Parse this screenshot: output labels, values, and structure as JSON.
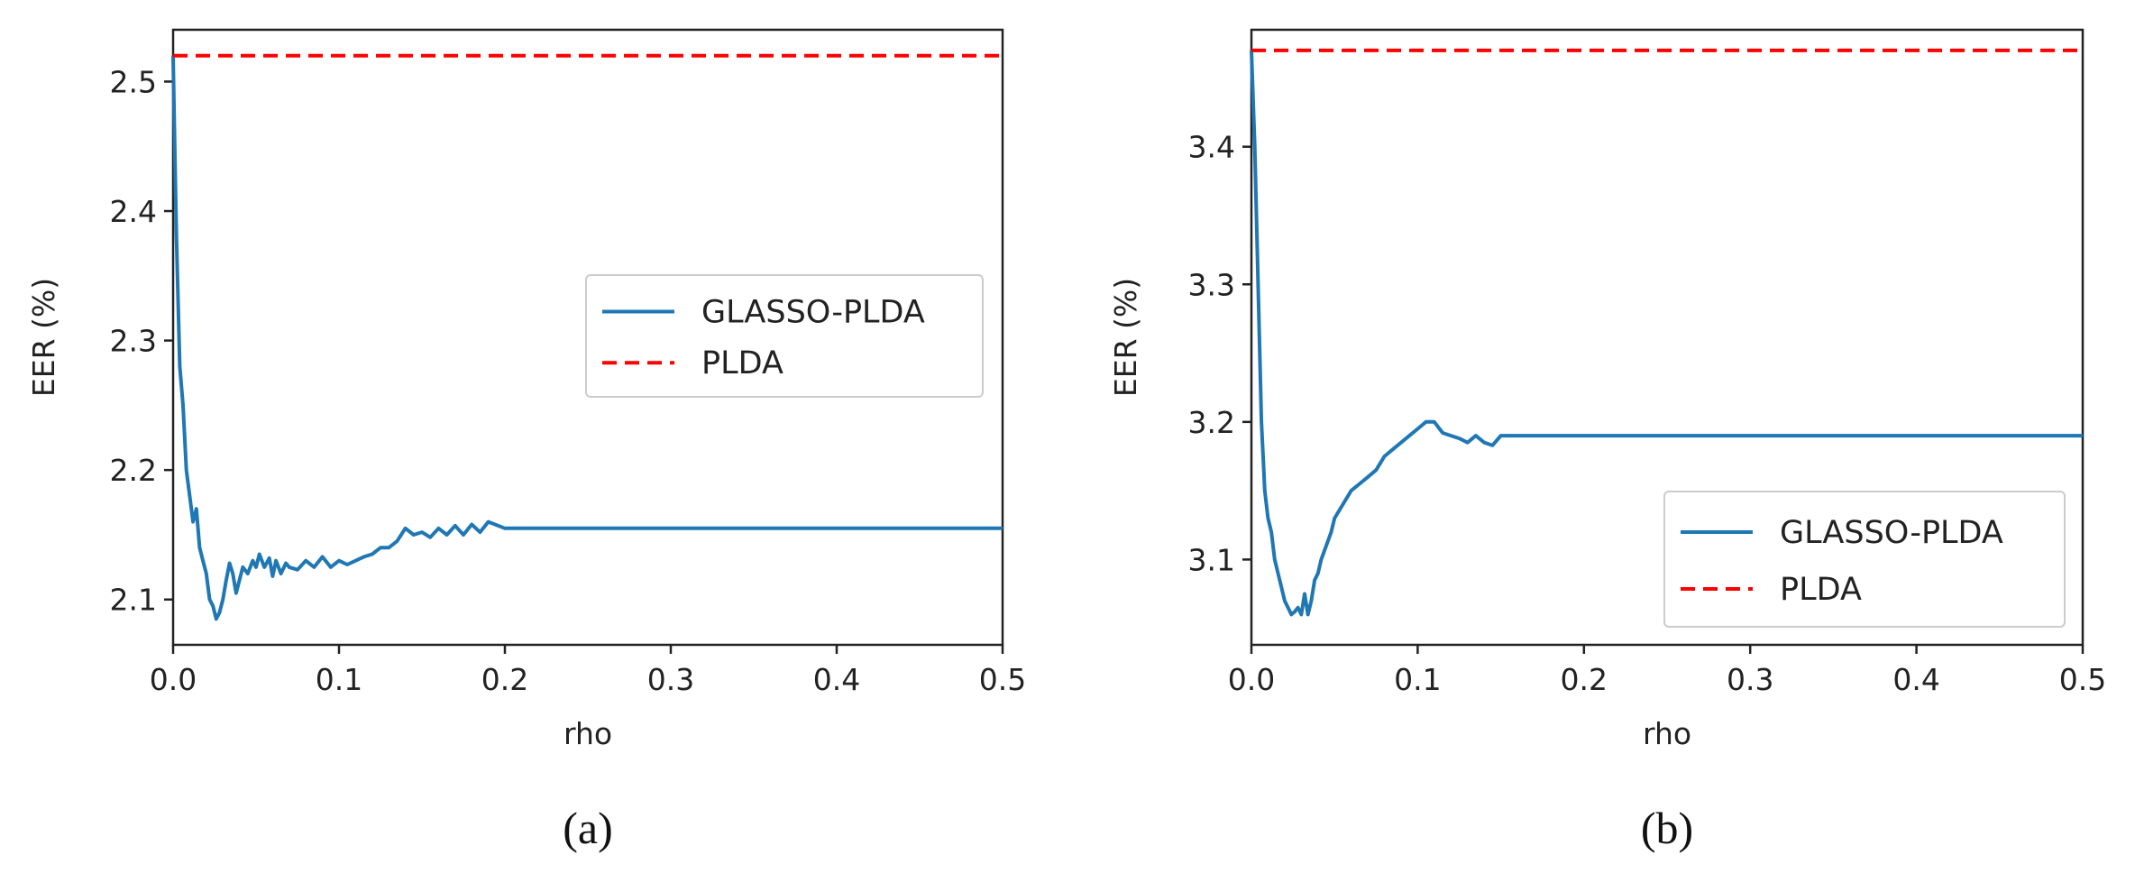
{
  "chart_data": [
    {
      "type": "line",
      "caption": "(a)",
      "xlabel": "rho",
      "ylabel": "EER (%)",
      "xlim": [
        0,
        0.5
      ],
      "ylim": [
        2.065,
        2.54
      ],
      "xticks": [
        0.0,
        0.1,
        0.2,
        0.3,
        0.4,
        0.5
      ],
      "xtick_labels": [
        "0.0",
        "0.1",
        "0.2",
        "0.3",
        "0.4",
        "0.5"
      ],
      "yticks": [
        2.1,
        2.2,
        2.3,
        2.4,
        2.5
      ],
      "ytick_labels": [
        "2.1",
        "2.2",
        "2.3",
        "2.4",
        "2.5"
      ],
      "legend_position": "center-right",
      "series": [
        {
          "name": "GLASSO-PLDA",
          "color": "#1f77b4",
          "style": "solid",
          "x": [
            0.0,
            0.001,
            0.002,
            0.004,
            0.006,
            0.008,
            0.01,
            0.012,
            0.014,
            0.016,
            0.018,
            0.02,
            0.022,
            0.024,
            0.026,
            0.028,
            0.03,
            0.032,
            0.034,
            0.036,
            0.038,
            0.04,
            0.042,
            0.045,
            0.048,
            0.05,
            0.052,
            0.055,
            0.058,
            0.06,
            0.062,
            0.065,
            0.068,
            0.07,
            0.075,
            0.08,
            0.085,
            0.09,
            0.095,
            0.1,
            0.105,
            0.11,
            0.115,
            0.12,
            0.125,
            0.13,
            0.135,
            0.14,
            0.145,
            0.15,
            0.155,
            0.16,
            0.165,
            0.17,
            0.175,
            0.18,
            0.185,
            0.19,
            0.2,
            0.25,
            0.3,
            0.35,
            0.4,
            0.45,
            0.5
          ],
          "values": [
            2.52,
            2.45,
            2.38,
            2.28,
            2.25,
            2.2,
            2.18,
            2.16,
            2.17,
            2.14,
            2.13,
            2.12,
            2.1,
            2.095,
            2.085,
            2.09,
            2.1,
            2.115,
            2.128,
            2.12,
            2.105,
            2.115,
            2.125,
            2.12,
            2.13,
            2.125,
            2.135,
            2.125,
            2.132,
            2.118,
            2.13,
            2.12,
            2.128,
            2.125,
            2.123,
            2.13,
            2.125,
            2.133,
            2.125,
            2.13,
            2.127,
            2.13,
            2.133,
            2.135,
            2.14,
            2.14,
            2.145,
            2.155,
            2.15,
            2.152,
            2.148,
            2.155,
            2.15,
            2.157,
            2.15,
            2.158,
            2.152,
            2.16,
            2.155,
            2.155,
            2.155,
            2.155,
            2.155,
            2.155,
            2.155
          ]
        },
        {
          "name": "PLDA",
          "color": "#ff0000",
          "style": "dashed",
          "x": [
            0.0,
            0.5
          ],
          "values": [
            2.52,
            2.52
          ]
        }
      ]
    },
    {
      "type": "line",
      "caption": "(b)",
      "xlabel": "rho",
      "ylabel": "EER (%)",
      "xlim": [
        0,
        0.5
      ],
      "ylim": [
        3.038,
        3.485
      ],
      "xticks": [
        0.0,
        0.1,
        0.2,
        0.3,
        0.4,
        0.5
      ],
      "xtick_labels": [
        "0.0",
        "0.1",
        "0.2",
        "0.3",
        "0.4",
        "0.5"
      ],
      "yticks": [
        3.1,
        3.2,
        3.3,
        3.4
      ],
      "ytick_labels": [
        "3.1",
        "3.2",
        "3.3",
        "3.4"
      ],
      "legend_position": "lower-right",
      "series": [
        {
          "name": "GLASSO-PLDA",
          "color": "#1f77b4",
          "style": "solid",
          "x": [
            0.0,
            0.002,
            0.004,
            0.006,
            0.008,
            0.01,
            0.012,
            0.014,
            0.016,
            0.018,
            0.02,
            0.022,
            0.024,
            0.026,
            0.028,
            0.03,
            0.032,
            0.034,
            0.036,
            0.038,
            0.04,
            0.042,
            0.045,
            0.048,
            0.05,
            0.055,
            0.06,
            0.065,
            0.07,
            0.075,
            0.08,
            0.085,
            0.09,
            0.095,
            0.1,
            0.105,
            0.11,
            0.115,
            0.12,
            0.125,
            0.13,
            0.135,
            0.14,
            0.145,
            0.15,
            0.155,
            0.2,
            0.25,
            0.3,
            0.35,
            0.4,
            0.45,
            0.5
          ],
          "values": [
            3.47,
            3.4,
            3.3,
            3.2,
            3.15,
            3.13,
            3.12,
            3.1,
            3.09,
            3.08,
            3.07,
            3.065,
            3.06,
            3.062,
            3.065,
            3.06,
            3.075,
            3.06,
            3.07,
            3.085,
            3.09,
            3.1,
            3.11,
            3.12,
            3.13,
            3.14,
            3.15,
            3.155,
            3.16,
            3.165,
            3.175,
            3.18,
            3.185,
            3.19,
            3.195,
            3.2,
            3.2,
            3.192,
            3.19,
            3.188,
            3.185,
            3.19,
            3.185,
            3.183,
            3.19,
            3.19,
            3.19,
            3.19,
            3.19,
            3.19,
            3.19,
            3.19,
            3.19
          ]
        },
        {
          "name": "PLDA",
          "color": "#ff0000",
          "style": "dashed",
          "x": [
            0.0,
            0.5
          ],
          "values": [
            3.47,
            3.47
          ]
        }
      ]
    }
  ]
}
